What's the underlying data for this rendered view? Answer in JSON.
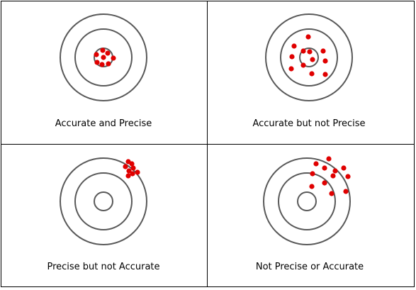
{
  "figure": {
    "panels": [
      {
        "id": "accurate-precise",
        "caption": "Accurate and Precise"
      },
      {
        "id": "accurate-not-precise",
        "caption": "Accurate but not Precise"
      },
      {
        "id": "precise-not-accurate",
        "caption": "Precise but not Accurate"
      },
      {
        "id": "not-precise-not-accurate",
        "caption": "Not Precise or Accurate"
      }
    ],
    "colors": {
      "ring": "#595959",
      "shot": "#e00000",
      "border": "#000000"
    }
  }
}
